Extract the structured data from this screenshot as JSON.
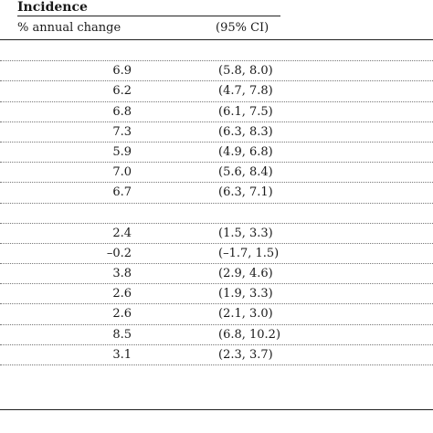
{
  "table": {
    "title": "Incidence",
    "headers": [
      "% annual change",
      "(95% CI)"
    ],
    "rows": [
      [
        "",
        ""
      ],
      [
        "6.9",
        "(5.8, 8.0)"
      ],
      [
        "6.2",
        "(4.7, 7.8)"
      ],
      [
        "6.8",
        "(6.1, 7.5)"
      ],
      [
        "7.3",
        "(6.3, 8.3)"
      ],
      [
        "5.9",
        "(4.9, 6.8)"
      ],
      [
        "7.0",
        "(5.6, 8.4)"
      ],
      [
        "6.7",
        "(6.3, 7.1)"
      ],
      [
        "",
        ""
      ],
      [
        "2.4",
        "(1.5, 3.3)"
      ],
      [
        "–0.2",
        "(–1.7, 1.5)"
      ],
      [
        "3.8",
        "(2.9, 4.6)"
      ],
      [
        "2.6",
        "(1.9, 3.3)"
      ],
      [
        "2.6",
        "(2.1, 3.0)"
      ],
      [
        "8.5",
        "(6.8, 10.2)"
      ],
      [
        "3.1",
        "(2.3, 3.7)"
      ]
    ]
  }
}
